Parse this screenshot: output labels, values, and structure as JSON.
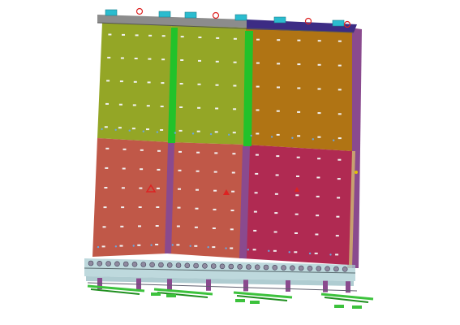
{
  "scene": {
    "colors": {
      "background": "#ffffff",
      "panel_olive": "#94a626",
      "panel_orange": "#b07414",
      "panel_salmon": "#c05848",
      "panel_crimson": "#b02a52",
      "green_divider": "#22c22a",
      "purple_frame": "#8a4a8e",
      "navy_top_rail": "#3c2c84",
      "gray_top_rail": "#8c8c8c",
      "tan_side": "#c8a070",
      "rail_blue": "#a8ccd2",
      "teal_block": "#2bbccf",
      "red_marker": "#dd2222",
      "base_green": "#3cc23c",
      "hole_white": "#f2f2f2"
    },
    "icons": {
      "marker": "triangle-icon",
      "connector": "clip-icon",
      "hook": "ring-icon"
    }
  }
}
